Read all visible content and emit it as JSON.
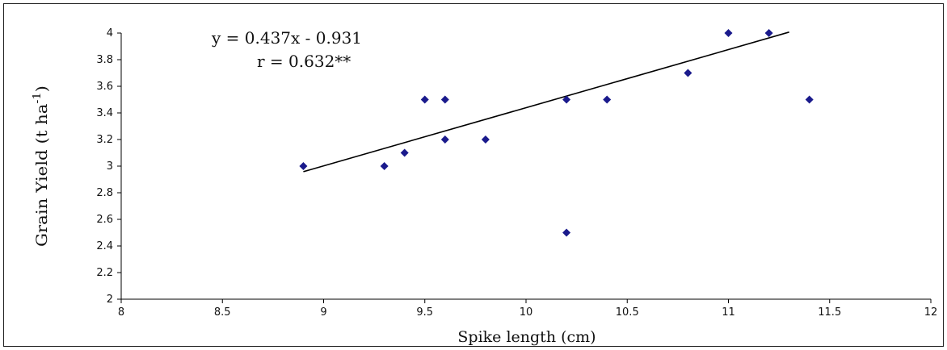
{
  "chart_data": {
    "type": "scatter",
    "xlabel": "Spike length (cm)",
    "ylabel": "Grain Yield (t ha",
    "ylabel_sup": "-1",
    "ylabel_close": ")",
    "xlim": [
      8,
      12
    ],
    "ylim": [
      2,
      4
    ],
    "x_ticks": [
      "8",
      "8.5",
      "9",
      "9.5",
      "10",
      "10.5",
      "11",
      "11.5",
      "12"
    ],
    "y_ticks": [
      "2",
      "2.2",
      "2.4",
      "2.6",
      "2.8",
      "3",
      "3.2",
      "3.4",
      "3.6",
      "3.8",
      "4"
    ],
    "points": [
      {
        "x": 8.9,
        "y": 3.0
      },
      {
        "x": 9.3,
        "y": 3.0
      },
      {
        "x": 9.4,
        "y": 3.1
      },
      {
        "x": 9.5,
        "y": 3.5
      },
      {
        "x": 9.6,
        "y": 3.5
      },
      {
        "x": 9.6,
        "y": 3.2
      },
      {
        "x": 9.8,
        "y": 3.2
      },
      {
        "x": 10.2,
        "y": 3.5
      },
      {
        "x": 10.2,
        "y": 2.5
      },
      {
        "x": 10.4,
        "y": 3.5
      },
      {
        "x": 10.8,
        "y": 3.7
      },
      {
        "x": 11.0,
        "y": 4.0
      },
      {
        "x": 11.2,
        "y": 4.0
      },
      {
        "x": 11.4,
        "y": 3.5
      }
    ],
    "trendline": {
      "x_start": 8.9,
      "x_end": 11.3,
      "slope": 0.437,
      "intercept": -0.931
    },
    "equation": "y = 0.437x - 0.931",
    "r_label": "r = 0.632**",
    "marker_color": "#1a1a8c",
    "line_color": "#000000",
    "grid": false,
    "legend": "none"
  }
}
